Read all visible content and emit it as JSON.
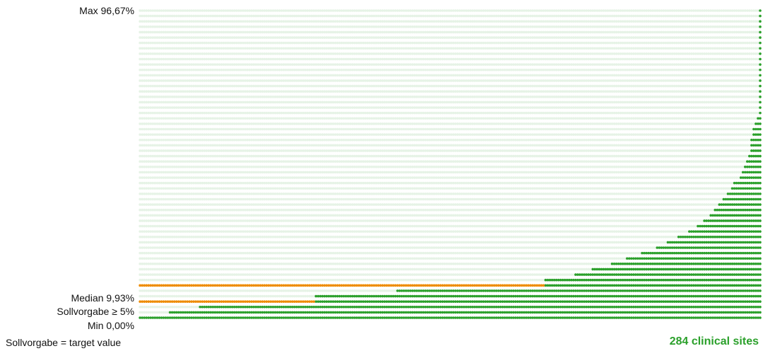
{
  "labels": {
    "max": "Max 96,67%",
    "median": "Median 9,93%",
    "target": "Sollvorgabe ≥ 5%",
    "min": "Min 0,00%"
  },
  "footnote": "Sollvorgabe = target value",
  "sites_label": "284 clinical sites",
  "colors": {
    "background_dot": "#e6f3e6",
    "filled_dot": "#2ba02b",
    "reference_dot": "#ee8c00",
    "sites_text": "#2ba02b"
  },
  "chart_data": {
    "type": "dot-matrix",
    "n_sites": 284,
    "y_min": 0.0,
    "y_max": 96.67,
    "median": 9.93,
    "target": 5.0,
    "series": [
      {
        "values_sorted_percent_by_column": [
          0,
          0,
          0,
          0,
          0,
          0,
          0,
          0,
          0,
          0,
          0,
          0,
          0,
          0,
          1.7,
          1.7,
          1.7,
          1.7,
          1.7,
          1.7,
          1.7,
          1.7,
          1.7,
          1.7,
          1.7,
          1.7,
          1.7,
          1.7,
          3.4,
          3.4,
          3.4,
          3.4,
          3.4,
          3.4,
          3.4,
          3.4,
          3.4,
          3.4,
          3.4,
          3.4,
          3.4,
          3.4,
          5.0,
          5.0,
          5.0,
          5.0,
          5.0,
          5.0,
          5.0,
          5.0,
          5.0,
          5.0,
          5.0,
          5.0,
          5.0,
          5.0,
          5.0,
          5.0,
          5.0,
          5.0,
          5.0,
          5.0,
          5.0,
          5.0,
          5.0,
          5.0,
          5.0,
          5.0,
          5.0,
          5.0,
          5.0,
          5.0,
          5.0,
          5.0,
          5.0,
          5.0,
          5.0,
          5.0,
          5.0,
          5.0,
          5.0,
          5.0,
          6.7,
          6.7,
          6.7,
          6.7,
          6.7,
          6.7,
          6.7,
          6.7,
          6.7,
          6.7,
          6.7,
          6.7,
          6.7,
          6.7,
          6.7,
          6.7,
          6.7,
          6.7,
          6.7,
          6.7,
          6.7,
          6.7,
          6.7,
          6.7,
          6.7,
          6.7,
          6.7,
          6.7,
          6.7,
          6.7,
          6.7,
          6.7,
          6.7,
          6.7,
          6.7,
          6.7,
          6.7,
          6.7,
          8.3,
          8.3,
          8.3,
          8.3,
          8.3,
          8.3,
          8.3,
          8.3,
          8.3,
          8.3,
          8.3,
          8.3,
          8.3,
          8.3,
          8.3,
          8.3,
          8.3,
          8.3,
          8.3,
          8.3,
          8.3,
          10.0,
          10.0,
          10.0,
          10.0,
          10.0,
          10.0,
          10.0,
          10.0,
          10.0,
          10.0,
          10.0,
          10.0,
          10.0,
          10.0,
          10.0,
          10.0,
          10.0,
          10.0,
          10.0,
          10.0,
          10.0,
          10.0,
          10.0,
          10.0,
          10.0,
          10.0,
          10.0,
          10.0,
          10.0,
          10.0,
          10.0,
          10.0,
          10.0,
          10.0,
          10.0,
          10.0,
          10.0,
          10.0,
          10.0,
          10.0,
          10.0,
          10.0,
          10.0,
          10.0,
          10.0,
          10.0,
          10.0,
          10.0,
          11.7,
          11.7,
          11.7,
          11.7,
          11.7,
          11.7,
          11.7,
          11.7,
          11.7,
          11.7,
          11.7,
          11.7,
          11.7,
          11.7,
          13.4,
          13.4,
          13.4,
          13.4,
          13.4,
          13.4,
          13.4,
          13.4,
          15.1,
          15.1,
          15.1,
          15.1,
          15.1,
          15.1,
          15.1,
          15.1,
          15.1,
          16.8,
          16.8,
          16.8,
          16.8,
          16.8,
          16.8,
          16.8,
          18.5,
          18.5,
          18.5,
          18.5,
          18.5,
          18.5,
          18.5,
          20.2,
          20.2,
          20.2,
          20.2,
          20.2,
          20.2,
          20.2,
          21.8,
          21.8,
          21.8,
          21.8,
          21.8,
          23.5,
          23.5,
          23.5,
          23.5,
          23.5,
          25.2,
          25.2,
          25.2,
          25.2,
          25.2,
          26.9,
          26.9,
          26.9,
          26.9,
          28.6,
          28.6,
          28.6,
          30.3,
          30.3,
          30.3,
          32.0,
          32.0,
          33.6,
          33.6,
          35.3,
          35.3,
          37.0,
          37.0,
          38.7,
          38.7,
          40.4,
          42.1,
          42.1,
          42.1,
          43.8,
          45.4,
          47.1,
          48.8,
          50.4,
          55.5,
          58.9,
          60.5,
          62.2,
          96.67
        ]
      }
    ]
  }
}
